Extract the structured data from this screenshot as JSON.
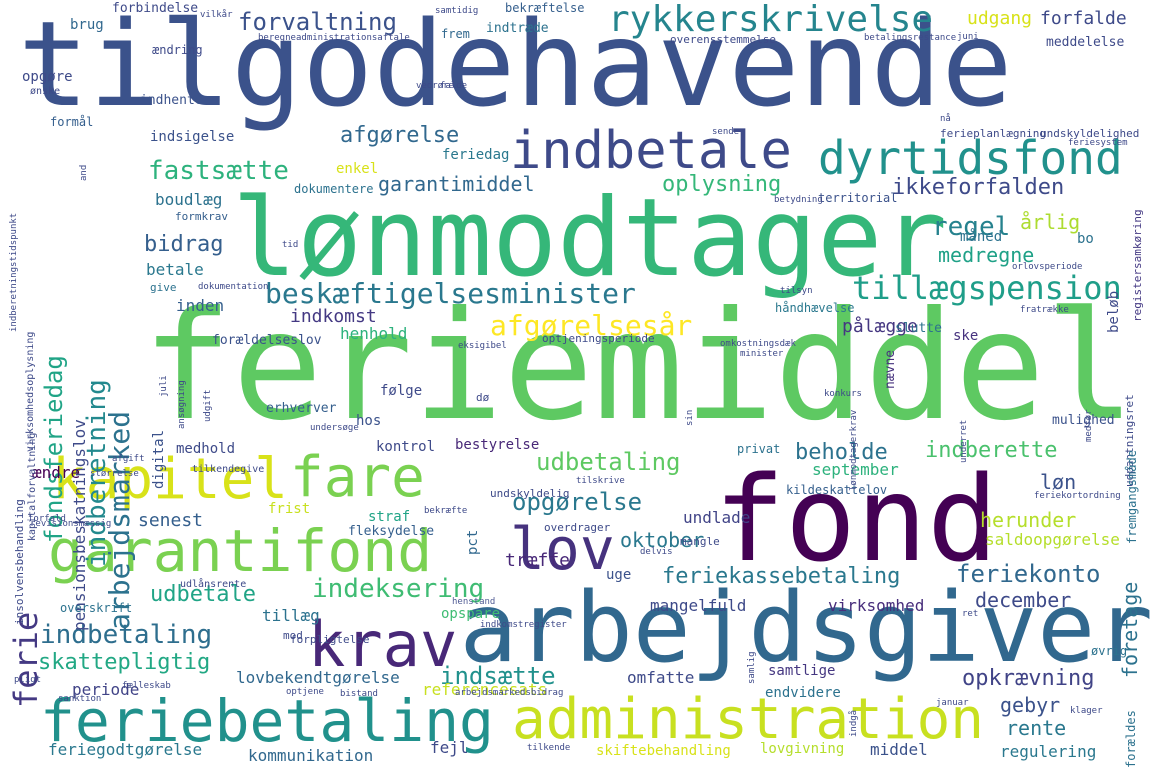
{
  "words": [
    {
      "text": "tilgodehavende",
      "color": "#3b528b"
    },
    {
      "text": "feriemiddel",
      "color": "#5ec962"
    },
    {
      "text": "lønmodtager",
      "color": "#35b779"
    },
    {
      "text": "arbejdsgiver",
      "color": "#31688e"
    },
    {
      "text": "fond",
      "color": "#440154"
    },
    {
      "text": "feriebetaling",
      "color": "#21918c"
    },
    {
      "text": "administration",
      "color": "#c8e020"
    },
    {
      "text": "kapitel",
      "color": "#d8e219"
    },
    {
      "text": "fare",
      "color": "#7ad151"
    },
    {
      "text": "garantifond",
      "color": "#7ad151"
    },
    {
      "text": "indbetale",
      "color": "#3e4a89"
    },
    {
      "text": "dyrtidsfond",
      "color": "#21918c"
    },
    {
      "text": "krav",
      "color": "#482878"
    },
    {
      "text": "lov",
      "color": "#46327e"
    },
    {
      "text": "rykkerskrivelse",
      "color": "#25858e"
    },
    {
      "text": "beskæftigelsesminister",
      "color": "#2a788e"
    },
    {
      "text": "tillægspension",
      "color": "#1f9e89"
    },
    {
      "text": "arbejdsmarked",
      "color": "#2c728e"
    },
    {
      "text": "indberetning",
      "color": "#23898e"
    },
    {
      "text": "fondsferiedag",
      "color": "#20a486"
    },
    {
      "text": "forvaltning",
      "color": "#3b528b"
    },
    {
      "text": "fastsætte",
      "color": "#2db27d"
    },
    {
      "text": "afgørelsesår",
      "color": "#fde725"
    },
    {
      "text": "indeksering",
      "color": "#3fbc73"
    },
    {
      "text": "feriekassebetaling",
      "color": "#2a788e"
    },
    {
      "text": "udbetaling",
      "color": "#5ec962"
    },
    {
      "text": "opgørelse",
      "color": "#2a788e"
    },
    {
      "text": "indbetaling",
      "color": "#2e6e8e"
    },
    {
      "text": "ferie",
      "color": "#443983"
    },
    {
      "text": "regel",
      "color": "#26828e"
    },
    {
      "text": "ikkeforfalden",
      "color": "#3e4a89"
    },
    {
      "text": "garantimiddel",
      "color": "#31688e"
    },
    {
      "text": "oplysning",
      "color": "#35b779"
    },
    {
      "text": "afgørelse",
      "color": "#31688e"
    },
    {
      "text": "bidrag",
      "color": "#355f8d"
    },
    {
      "text": "oktober",
      "color": "#2a788e"
    },
    {
      "text": "herunder",
      "color": "#b5de2b"
    },
    {
      "text": "udbetale",
      "color": "#20a486"
    },
    {
      "text": "skattepligtig",
      "color": "#22a884"
    },
    {
      "text": "indsætte",
      "color": "#21918c"
    },
    {
      "text": "opkrævning",
      "color": "#414487"
    },
    {
      "text": "feriekonto",
      "color": "#31688e"
    },
    {
      "text": "december",
      "color": "#3e4a89"
    },
    {
      "text": "beholde",
      "color": "#2c728e"
    },
    {
      "text": "indberette",
      "color": "#4ac16d"
    },
    {
      "text": "foretage",
      "color": "#2c728e"
    },
    {
      "text": "gebyr",
      "color": "#3b528b"
    },
    {
      "text": "rente",
      "color": "#2a788e"
    },
    {
      "text": "årlig",
      "color": "#addc30"
    },
    {
      "text": "medregne",
      "color": "#1fa187"
    },
    {
      "text": "indkomst",
      "color": "#443983"
    },
    {
      "text": "pålægge",
      "color": "#453781"
    },
    {
      "text": "henhold",
      "color": "#2db27d"
    },
    {
      "text": "senest",
      "color": "#355f8d"
    },
    {
      "text": "løn",
      "color": "#3b528b"
    },
    {
      "text": "udgang",
      "color": "#d8e219"
    },
    {
      "text": "forfalde",
      "color": "#3e4a89"
    },
    {
      "text": "september",
      "color": "#2db27d"
    },
    {
      "text": "undlade",
      "color": "#414487"
    },
    {
      "text": "pensionsbeskatningslov",
      "color": "#3e4a89"
    },
    {
      "text": "boudlæg",
      "color": "#2c728e"
    },
    {
      "text": "betale",
      "color": "#2a788e"
    },
    {
      "text": "inden",
      "color": "#355f8d"
    },
    {
      "text": "saldoopgørelse",
      "color": "#b5de2b"
    },
    {
      "text": "mangelfuld",
      "color": "#3e4a89"
    },
    {
      "text": "virksomhed",
      "color": "#472d7b"
    },
    {
      "text": "træffe",
      "color": "#482878"
    },
    {
      "text": "kommunikation",
      "color": "#31688e"
    },
    {
      "text": "regulering",
      "color": "#2a788e"
    },
    {
      "text": "middel",
      "color": "#3b528b"
    },
    {
      "text": "fejl",
      "color": "#3e4a89"
    },
    {
      "text": "feriegodtgørelse",
      "color": "#2a788e"
    },
    {
      "text": "periode",
      "color": "#414487"
    },
    {
      "text": "lovbekendtgørelse",
      "color": "#31688e"
    },
    {
      "text": "referencesats",
      "color": "#c8e020"
    },
    {
      "text": "omfatte",
      "color": "#3e4a89"
    },
    {
      "text": "samtlige",
      "color": "#453781"
    },
    {
      "text": "endvidere",
      "color": "#2c728e"
    },
    {
      "text": "skiftebehandling",
      "color": "#d8e219"
    },
    {
      "text": "lovgivning",
      "color": "#b5de2b"
    },
    {
      "text": "tillæg",
      "color": "#2c728e"
    },
    {
      "text": "opspare",
      "color": "#3fbc73"
    },
    {
      "text": "kontrol",
      "color": "#3e4a89"
    },
    {
      "text": "bestyrelse",
      "color": "#482878"
    },
    {
      "text": "straf",
      "color": "#20a486"
    },
    {
      "text": "frist",
      "color": "#c8e020"
    },
    {
      "text": "ændre",
      "color": "#440154"
    },
    {
      "text": "digital",
      "color": "#3b528b"
    },
    {
      "text": "medhold",
      "color": "#3e4a89"
    },
    {
      "text": "hos",
      "color": "#3b528b"
    },
    {
      "text": "følge",
      "color": "#3e4a89"
    },
    {
      "text": "erhverver",
      "color": "#355f8d"
    },
    {
      "text": "ske",
      "color": "#46327e"
    },
    {
      "text": "forældelseslov",
      "color": "#3b528b"
    },
    {
      "text": "enkel",
      "color": "#d8e219"
    },
    {
      "text": "feriedag",
      "color": "#2a788e"
    },
    {
      "text": "fleksydelse",
      "color": "#355f8d"
    },
    {
      "text": "pct",
      "color": "#31688e"
    },
    {
      "text": "uge",
      "color": "#3b528b"
    },
    {
      "text": "brug",
      "color": "#31688e"
    },
    {
      "text": "ændring",
      "color": "#3e4a89"
    },
    {
      "text": "opgøre",
      "color": "#3e4a89"
    },
    {
      "text": "forbindelse",
      "color": "#3e4a89"
    },
    {
      "text": "indtræde",
      "color": "#2c728e"
    },
    {
      "text": "bekræftelse",
      "color": "#355f8d"
    },
    {
      "text": "frem",
      "color": "#31688e"
    },
    {
      "text": "meddelelse",
      "color": "#3e4a89"
    },
    {
      "text": "indhente",
      "color": "#3b528b"
    },
    {
      "text": "indsigelse",
      "color": "#3b528b"
    },
    {
      "text": "formål",
      "color": "#355f8d"
    },
    {
      "text": "dokumentere",
      "color": "#2c728e"
    },
    {
      "text": "måned",
      "color": "#2c728e"
    },
    {
      "text": "bo",
      "color": "#2c728e"
    },
    {
      "text": "beløb",
      "color": "#3e4a89"
    },
    {
      "text": "nævne",
      "color": "#46327e"
    },
    {
      "text": "slutte",
      "color": "#2c728e"
    },
    {
      "text": "håndhævelse",
      "color": "#2a788e"
    },
    {
      "text": "territorial",
      "color": "#3b528b"
    },
    {
      "text": "mulighed",
      "color": "#3b528b"
    },
    {
      "text": "kildeskattelov",
      "color": "#355f8d"
    },
    {
      "text": "privat",
      "color": "#2c728e"
    },
    {
      "text": "formkrav",
      "color": "#355f8d"
    },
    {
      "text": "give",
      "color": "#2c728e"
    },
    {
      "text": "optjeningsperiode",
      "color": "#3e4a89"
    },
    {
      "text": "registersamkøring",
      "color": "#443983"
    },
    {
      "text": "udpantningsret",
      "color": "#3e4a89"
    },
    {
      "text": "fremgangsmåde",
      "color": "#2c728e"
    },
    {
      "text": "insolvensbehandling",
      "color": "#3e4a89"
    },
    {
      "text": "virksomhedsoplysning",
      "color": "#3e4a89"
    },
    {
      "text": "kapitalforvaltning",
      "color": "#3e4a89"
    },
    {
      "text": "forældes",
      "color": "#2c728e"
    },
    {
      "text": "øvrig",
      "color": "#2c728e"
    },
    {
      "text": "forpligtelse",
      "color": "#3e4a89"
    },
    {
      "text": "overskrift",
      "color": "#2c728e"
    },
    {
      "text": "mod",
      "color": "#3e4a89"
    },
    {
      "text": "henstand",
      "color": "#3e4a89"
    },
    {
      "text": "udlånsrente",
      "color": "#3e4a89"
    },
    {
      "text": "revisionsmæssig",
      "color": "#3e4a89"
    },
    {
      "text": "indkomstregister",
      "color": "#3e4a89"
    },
    {
      "text": "arbejdsmarkedsbidrag",
      "color": "#3e4a89"
    },
    {
      "text": "fælleskab",
      "color": "#3e4a89"
    },
    {
      "text": "optjene",
      "color": "#3e4a89"
    },
    {
      "text": "bistand",
      "color": "#3e4a89"
    },
    {
      "text": "tilkende",
      "color": "#3e4a89"
    },
    {
      "text": "undskyldelig",
      "color": "#3e4a89"
    },
    {
      "text": "tilskrive",
      "color": "#3e4a89"
    },
    {
      "text": "bekræfte",
      "color": "#3e4a89"
    },
    {
      "text": "delvis",
      "color": "#3e4a89"
    },
    {
      "text": "mangle",
      "color": "#3e4a89"
    },
    {
      "text": "overdrager",
      "color": "#3e4a89"
    },
    {
      "text": "tilkendegive",
      "color": "#3e4a89"
    },
    {
      "text": "størrelse",
      "color": "#3e4a89"
    },
    {
      "text": "undersøge",
      "color": "#3e4a89"
    },
    {
      "text": "omkostningsdæk",
      "color": "#3e4a89"
    },
    {
      "text": "minister",
      "color": "#3e4a89"
    },
    {
      "text": "eksigibel",
      "color": "#3e4a89"
    },
    {
      "text": "fratrække",
      "color": "#3e4a89"
    },
    {
      "text": "konkurs",
      "color": "#3e4a89"
    },
    {
      "text": "feriekortordning",
      "color": "#3e4a89"
    },
    {
      "text": "orlovsperiode",
      "color": "#3e4a89"
    },
    {
      "text": "tilsyn",
      "color": "#3e4a89"
    },
    {
      "text": "betydning",
      "color": "#3e4a89"
    },
    {
      "text": "ferieplanlægning",
      "color": "#3e4a89"
    },
    {
      "text": "undskyldelighed",
      "color": "#3e4a89"
    },
    {
      "text": "feriesystem",
      "color": "#3e4a89"
    },
    {
      "text": "betalingsrestance",
      "color": "#3e4a89"
    },
    {
      "text": "overensstemmelse",
      "color": "#3e4a89"
    },
    {
      "text": "administrationsaftale",
      "color": "#3e4a89"
    },
    {
      "text": "beregne",
      "color": "#3e4a89"
    },
    {
      "text": "samtidig",
      "color": "#3e4a89"
    },
    {
      "text": "vilkår",
      "color": "#3e4a89"
    },
    {
      "text": "juni",
      "color": "#3e4a89"
    },
    {
      "text": "ønske",
      "color": "#3e4a89"
    },
    {
      "text": "vedrøre",
      "color": "#3e4a89"
    },
    {
      "text": "falde",
      "color": "#3e4a89"
    },
    {
      "text": "nå",
      "color": "#3e4a89"
    },
    {
      "text": "sende",
      "color": "#3e4a89"
    },
    {
      "text": "tid",
      "color": "#3e4a89"
    },
    {
      "text": "dokumentation",
      "color": "#3e4a89"
    },
    {
      "text": "udgift",
      "color": "#3e4a89"
    },
    {
      "text": "juli",
      "color": "#3e4a89"
    },
    {
      "text": "sin",
      "color": "#3e4a89"
    },
    {
      "text": "medfør",
      "color": "#3e4a89"
    },
    {
      "text": "underret",
      "color": "#3e4a89"
    },
    {
      "text": "lønmodtagerkrav",
      "color": "#3e4a89"
    },
    {
      "text": "afgift",
      "color": "#3e4a89"
    },
    {
      "text": "forfald",
      "color": "#3e4a89"
    },
    {
      "text": "januar",
      "color": "#3e4a89"
    },
    {
      "text": "indgå",
      "color": "#3e4a89"
    },
    {
      "text": "klager",
      "color": "#3e4a89"
    },
    {
      "text": "sanktion",
      "color": "#3e4a89"
    },
    {
      "text": "pligt",
      "color": "#3e4a89"
    },
    {
      "text": "ret",
      "color": "#3e4a89"
    },
    {
      "text": "samlig",
      "color": "#3e4a89"
    },
    {
      "text": "and",
      "color": "#3e4a89"
    },
    {
      "text": "indberetningstidspunkt",
      "color": "#3e4a89"
    },
    {
      "text": "ansøgning",
      "color": "#3e4a89"
    },
    {
      "text": "dø",
      "color": "#3e4a89"
    }
  ]
}
